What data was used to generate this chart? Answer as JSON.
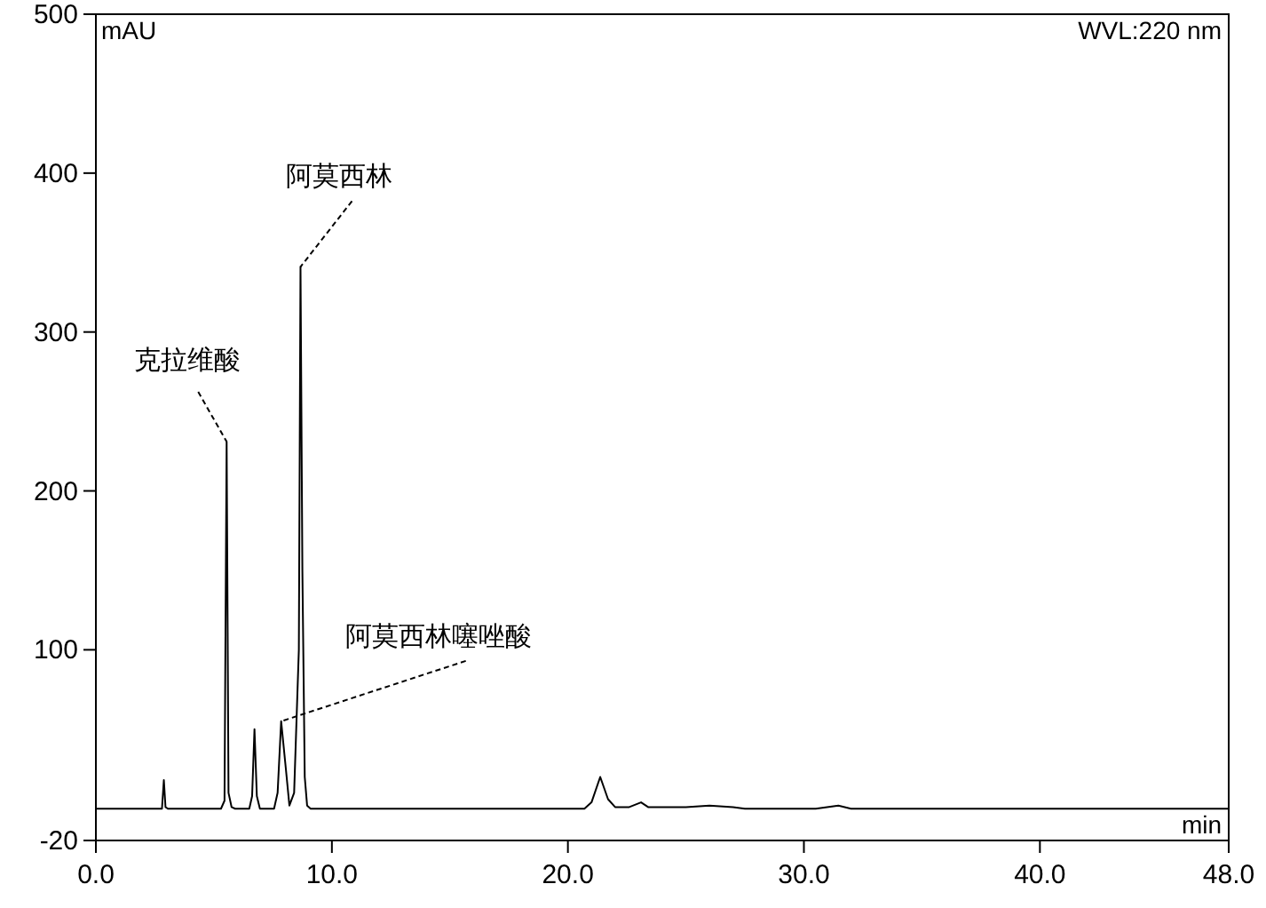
{
  "chart_data": {
    "type": "line",
    "xlabel": "min",
    "ylabel": "mAU",
    "color": "#000000",
    "x": [
      0,
      2.8,
      2.88,
      2.95,
      3.05,
      5.3,
      5.45,
      5.54,
      5.62,
      5.75,
      5.9,
      6.5,
      6.62,
      6.72,
      6.82,
      6.95,
      7.55,
      7.7,
      7.85,
      7.95,
      8.05,
      8.2,
      8.4,
      8.6,
      8.67,
      8.75,
      8.85,
      8.95,
      9.1,
      20.7,
      21.0,
      21.37,
      21.7,
      22.0,
      22.6,
      23.1,
      23.4,
      25,
      26,
      27,
      27.5,
      30.5,
      31.46,
      32,
      48
    ],
    "values": [
      0,
      0,
      18,
      1,
      0,
      0,
      5,
      231,
      10,
      1,
      0,
      0,
      8,
      50,
      8,
      0,
      0,
      10,
      55,
      40,
      25,
      2,
      10,
      100,
      341,
      150,
      20,
      2,
      0,
      0,
      4,
      20,
      6,
      1,
      1,
      4,
      1,
      1,
      2,
      1,
      0,
      0,
      2,
      0,
      0
    ],
    "xlim": [
      0,
      48
    ],
    "ylim": [
      -20,
      500
    ],
    "xticks": [
      {
        "value": 0,
        "label": "0.0"
      },
      {
        "value": 10,
        "label": "10.0"
      },
      {
        "value": 20,
        "label": "20.0"
      },
      {
        "value": 30,
        "label": "30.0"
      },
      {
        "value": 40,
        "label": "40.0"
      },
      {
        "value": 48,
        "label": "48.0"
      }
    ],
    "yticks": [
      -20,
      100,
      200,
      300,
      400,
      500
    ],
    "annotations": [
      {
        "text": "克拉维酸",
        "x": 5.54,
        "y": 231
      },
      {
        "text": "阿莫西林",
        "x": 8.67,
        "y": 341
      },
      {
        "text": "阿莫西林噻唑酸",
        "x": 7.85,
        "y": 55
      },
      "WVL:220 nm"
    ]
  }
}
